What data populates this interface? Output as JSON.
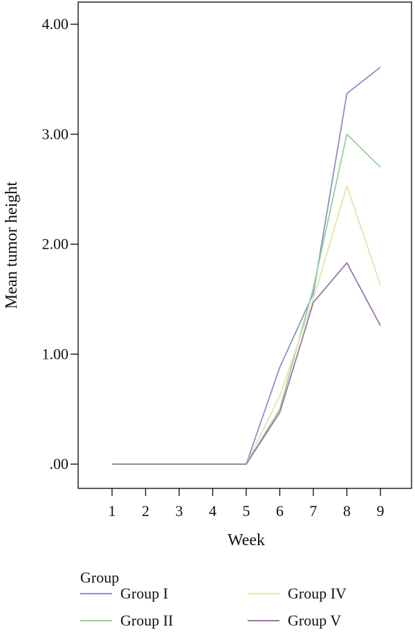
{
  "chart_data": {
    "type": "line",
    "title": "",
    "xlabel": "Week",
    "ylabel": "Mean tumor height",
    "x": [
      1,
      2,
      3,
      4,
      5,
      6,
      7,
      8,
      9
    ],
    "x_tick_labels": [
      "1",
      "2",
      "3",
      "4",
      "5",
      "6",
      "7",
      "8",
      "9"
    ],
    "xlim": [
      0,
      10
    ],
    "ylim": [
      -0.22,
      4.2
    ],
    "y_ticks": [
      0,
      1,
      2,
      3,
      4
    ],
    "y_tick_labels": [
      ".00",
      "1.00",
      "2.00",
      "3.00",
      "4.00"
    ],
    "grid": false,
    "legend": {
      "title": "Group",
      "placement": "bottom"
    },
    "series": [
      {
        "name": "Group I",
        "color": "#8f8cc8",
        "values": [
          0,
          0,
          0,
          0,
          0,
          0.88,
          1.55,
          3.37,
          3.61
        ]
      },
      {
        "name": "Group II",
        "color": "#8fd49a",
        "values": [
          0,
          0,
          0,
          0,
          0,
          0.5,
          1.6,
          3.0,
          2.7
        ]
      },
      {
        "name": "Group IV",
        "color": "#e5e5a8",
        "values": [
          0,
          0,
          0,
          0,
          0,
          0.62,
          1.5,
          2.53,
          1.63
        ]
      },
      {
        "name": "Group V",
        "color": "#9a74a8",
        "values": [
          0,
          0,
          0,
          0,
          0,
          0.47,
          1.47,
          1.83,
          1.26
        ]
      }
    ]
  }
}
